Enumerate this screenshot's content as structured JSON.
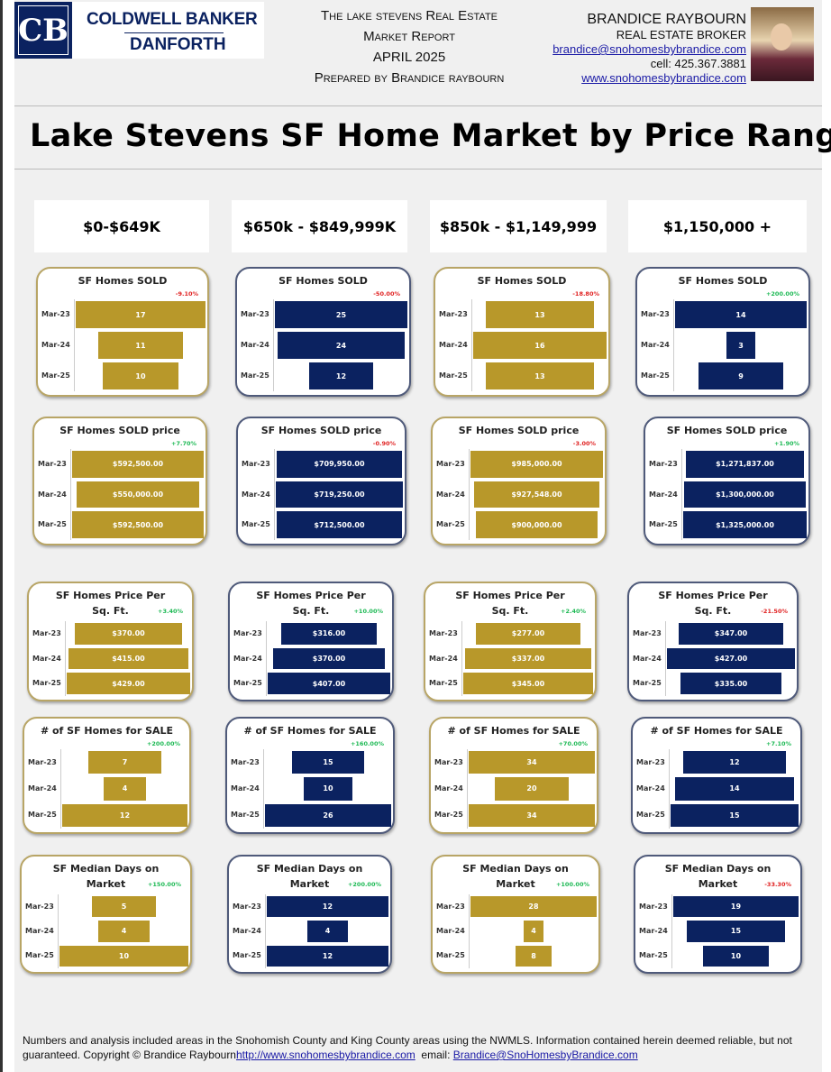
{
  "header": {
    "logo": {
      "mark": "CB",
      "line1": "COLDWELL BANKER",
      "line2": "DANFORTH"
    },
    "report_title_lines": [
      "The lake stevens Real Estate",
      "Market Report",
      "APRIL 2025",
      "Prepared by Brandice raybourn"
    ],
    "agent": {
      "name": "BRANDICE RAYBOURN",
      "role": "REAL ESTATE BROKER",
      "email": "brandice@snohomesbybrandice.com",
      "cell": "cell: 425.367.3881",
      "website": "www.snohomesbybrandice.com"
    }
  },
  "page_title": "Lake Stevens SF Home Market by Price Range",
  "colors": {
    "gold": "#B8982A",
    "navy": "#0B2260",
    "positive": "#1DB954",
    "negative": "#E02020"
  },
  "price_ranges": [
    {
      "label": "$0-$649K",
      "color": "gold"
    },
    {
      "label": "$650k - $849,999K",
      "color": "navy"
    },
    {
      "label": "$850k - $1,149,999",
      "color": "gold"
    },
    {
      "label": "$1,150,000 +",
      "color": "navy"
    }
  ],
  "periods": [
    "Mar-23",
    "Mar-24",
    "Mar-25"
  ],
  "metrics": [
    {
      "title": [
        "SF Homes SOLD"
      ],
      "cards": [
        {
          "change": "-9.10%",
          "values": [
            "17",
            "11",
            "10"
          ],
          "raw": [
            17,
            11,
            10
          ]
        },
        {
          "change": "-50.00%",
          "values": [
            "25",
            "24",
            "12"
          ],
          "raw": [
            25,
            24,
            12
          ]
        },
        {
          "change": "-18.80%",
          "values": [
            "13",
            "16",
            "13"
          ],
          "raw": [
            13,
            16,
            13
          ]
        },
        {
          "change": "+200.00%",
          "values": [
            "14",
            "3",
            "9"
          ],
          "raw": [
            14,
            3,
            9
          ]
        }
      ]
    },
    {
      "title": [
        "SF Homes SOLD price"
      ],
      "cards": [
        {
          "change": "+7.70%",
          "values": [
            "$592,500.00",
            "$550,000.00",
            "$592,500.00"
          ],
          "raw": [
            592500,
            550000,
            592500
          ]
        },
        {
          "change": "-0.90%",
          "values": [
            "$709,950.00",
            "$719,250.00",
            "$712,500.00"
          ],
          "raw": [
            709950,
            719250,
            712500
          ]
        },
        {
          "change": "-3.00%",
          "values": [
            "$985,000.00",
            "$927,548.00",
            "$900,000.00"
          ],
          "raw": [
            985000,
            927548,
            900000
          ]
        },
        {
          "change": "+1.90%",
          "values": [
            "$1,271,837.00",
            "$1,300,000.00",
            "$1,325,000.00"
          ],
          "raw": [
            1271837,
            1300000,
            1325000
          ]
        }
      ]
    },
    {
      "title": [
        "SF Homes Price Per",
        "Sq. Ft."
      ],
      "cards": [
        {
          "change": "+3.40%",
          "values": [
            "$370.00",
            "$415.00",
            "$429.00"
          ],
          "raw": [
            370,
            415,
            429
          ]
        },
        {
          "change": "+10.00%",
          "values": [
            "$316.00",
            "$370.00",
            "$407.00"
          ],
          "raw": [
            316,
            370,
            407
          ]
        },
        {
          "change": "+2.40%",
          "values": [
            "$277.00",
            "$337.00",
            "$345.00"
          ],
          "raw": [
            277,
            337,
            345
          ]
        },
        {
          "change": "-21.50%",
          "values": [
            "$347.00",
            "$427.00",
            "$335.00"
          ],
          "raw": [
            347,
            427,
            335
          ]
        }
      ]
    },
    {
      "title": [
        "# of SF Homes for SALE"
      ],
      "cards": [
        {
          "change": "+200.00%",
          "values": [
            "7",
            "4",
            "12"
          ],
          "raw": [
            7,
            4,
            12
          ]
        },
        {
          "change": "+160.00%",
          "values": [
            "15",
            "10",
            "26"
          ],
          "raw": [
            15,
            10,
            26
          ]
        },
        {
          "change": "+70.00%",
          "values": [
            "34",
            "20",
            "34"
          ],
          "raw": [
            34,
            20,
            34
          ]
        },
        {
          "change": "+7.10%",
          "values": [
            "12",
            "14",
            "15"
          ],
          "raw": [
            12,
            14,
            15
          ]
        }
      ]
    },
    {
      "title": [
        "SF Median Days on",
        "Market"
      ],
      "cards": [
        {
          "change": "+150.00%",
          "values": [
            "5",
            "4",
            "10"
          ],
          "raw": [
            5,
            4,
            10
          ]
        },
        {
          "change": "+200.00%",
          "values": [
            "12",
            "4",
            "12"
          ],
          "raw": [
            12,
            4,
            12
          ]
        },
        {
          "change": "+100.00%",
          "values": [
            "28",
            "4",
            "8"
          ],
          "raw": [
            28,
            4,
            8
          ]
        },
        {
          "change": "-33.30%",
          "values": [
            "19",
            "15",
            "10"
          ],
          "raw": [
            19,
            15,
            10
          ]
        }
      ]
    }
  ],
  "footer": {
    "text1": "Numbers and analysis included areas in the Snohomish County and King County areas using the NWMLS.  Information contained herein deemed reliable, but not guaranteed. Copyright © Brandice Raybourn",
    "link": "http://www.snohomesbybrandice.com",
    "email_label": "  email: ",
    "email": "Brandice@SnoHomesbyBrandice.com"
  }
}
